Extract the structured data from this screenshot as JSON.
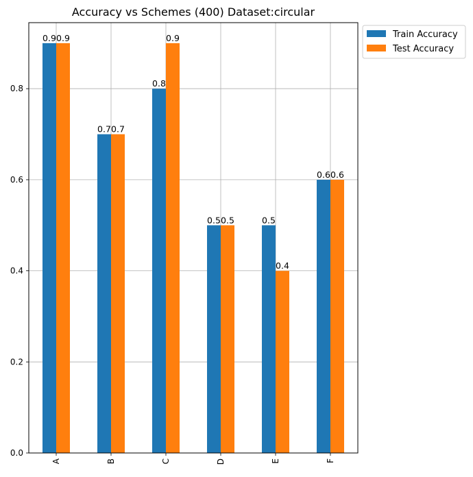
{
  "chart_data": {
    "type": "bar",
    "title": "Accuracy vs Schemes (400) Dataset:circular",
    "xlabel": "",
    "ylabel": "",
    "categories": [
      "A",
      "B",
      "C",
      "D",
      "E",
      "F"
    ],
    "series": [
      {
        "name": "Train Accuracy",
        "color": "#1f77b4",
        "values": [
          0.9,
          0.7,
          0.8,
          0.5,
          0.5,
          0.6
        ],
        "labels": [
          "0.9",
          "0.7",
          "0.8",
          "0.5",
          "0.5",
          "0.6"
        ]
      },
      {
        "name": "Test Accuracy",
        "color": "#ff7f0e",
        "values": [
          0.9,
          0.7,
          0.9,
          0.5,
          0.4,
          0.6
        ],
        "labels": [
          "0.9",
          "0.7",
          "0.9",
          "0.5",
          "0.4",
          "0.6"
        ]
      }
    ],
    "ylim": [
      0,
      0.945
    ],
    "yticks": [
      0.0,
      0.2,
      0.4,
      0.6,
      0.8
    ],
    "ytick_labels": [
      "0.0",
      "0.2",
      "0.4",
      "0.6",
      "0.8"
    ],
    "grid": true,
    "legend_position": "outside-top-right"
  }
}
